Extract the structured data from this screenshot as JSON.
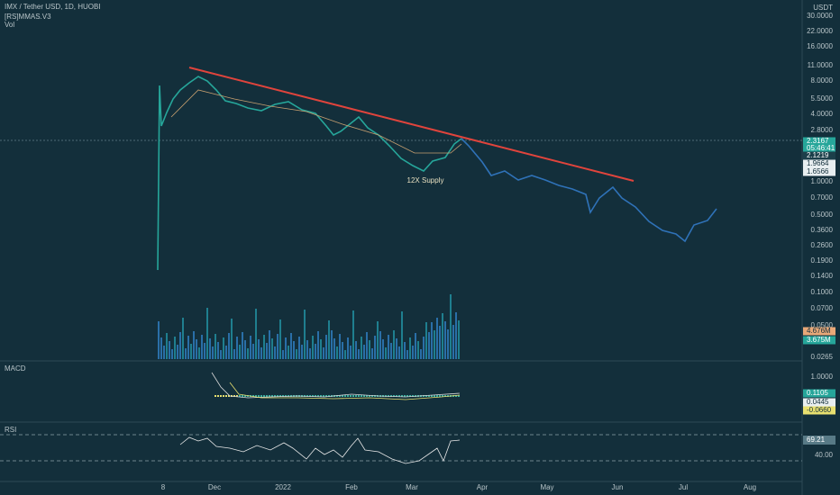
{
  "header": {
    "symbol": "IMX / Tether USD, 1D, HUOBI",
    "indicator": "[RS]MMAS.V3",
    "volume": "Vol"
  },
  "price_axis": {
    "unit": "USDT",
    "labels": [
      "30.0000",
      "22.0000",
      "16.0000",
      "11.0000",
      "8.0000",
      "5.5000",
      "4.0000",
      "2.8000",
      "1.0000",
      "0.7000",
      "0.5000",
      "0.3600",
      "0.2600",
      "0.1900",
      "0.1400",
      "0.1000",
      "0.0700",
      "0.0500",
      "0.0265"
    ]
  },
  "price_tags": [
    "2.3167",
    "05:46:41",
    "2.1219",
    "1.9664",
    "1.6566",
    "4.676M",
    "3.675M"
  ],
  "macd": {
    "title": "MACD",
    "labels": [
      "1.0000"
    ],
    "tags": [
      "0.1105",
      "0.0445",
      "-0.0660"
    ]
  },
  "rsi": {
    "title": "RSI",
    "labels": [
      "40.00"
    ],
    "tags": [
      "69.21"
    ]
  },
  "time_axis": [
    "8",
    "Dec",
    "2022",
    "Feb",
    "Mar",
    "Apr",
    "May",
    "Jun",
    "Jul",
    "Aug"
  ],
  "annotation": "12X Supply"
}
